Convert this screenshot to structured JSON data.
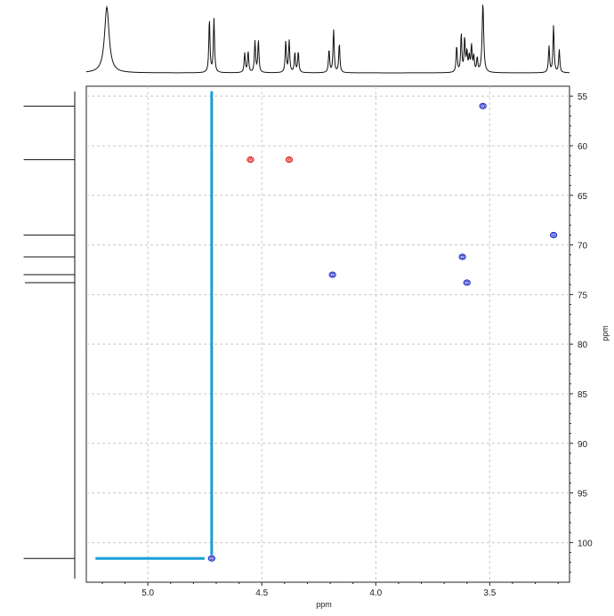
{
  "chart_data": {
    "type": "scatter",
    "title": "",
    "xlabel": "ppm",
    "ylabel": "ppm",
    "xlim": [
      5.27,
      3.15
    ],
    "ylim": [
      54.0,
      104.0
    ],
    "x_ticks": [
      {
        "value": 5.0,
        "label": "5.0"
      },
      {
        "value": 4.5,
        "label": "4.5"
      },
      {
        "value": 4.0,
        "label": "4.0"
      },
      {
        "value": 3.5,
        "label": "3.5"
      }
    ],
    "y_ticks": [
      {
        "value": 55,
        "label": "55"
      },
      {
        "value": 60,
        "label": "60"
      },
      {
        "value": 65,
        "label": "65"
      },
      {
        "value": 70,
        "label": "70"
      },
      {
        "value": 75,
        "label": "75"
      },
      {
        "value": 80,
        "label": "80"
      },
      {
        "value": 85,
        "label": "85"
      },
      {
        "value": 90,
        "label": "90"
      },
      {
        "value": 95,
        "label": "95"
      },
      {
        "value": 100,
        "label": "100"
      }
    ],
    "grid": true,
    "series": [
      {
        "color": "#1f2fbf",
        "points": [
          {
            "x": 3.53,
            "y": 56.0
          },
          {
            "x": 3.22,
            "y": 69.0
          },
          {
            "x": 3.62,
            "y": 71.2
          },
          {
            "x": 4.19,
            "y": 73.0
          },
          {
            "x": 3.6,
            "y": 73.8
          },
          {
            "x": 4.72,
            "y": 101.6
          }
        ]
      },
      {
        "color": "#e02424",
        "points": [
          {
            "x": 4.55,
            "y": 61.4
          },
          {
            "x": 4.38,
            "y": 61.4
          }
        ]
      }
    ],
    "highlight": {
      "color": "#1a9fd6",
      "x": 4.72,
      "y": 101.6,
      "x_from": 5.23,
      "y_from": 54.5
    },
    "top_projection": {
      "axis": "x_ppm",
      "peaks": [
        {
          "x": 5.18,
          "height": 0.95,
          "width": 0.012
        },
        {
          "x": 4.73,
          "height": 0.77,
          "width": 0.003
        },
        {
          "x": 4.71,
          "height": 0.78,
          "width": 0.003
        },
        {
          "x": 4.575,
          "height": 0.28,
          "width": 0.003
        },
        {
          "x": 4.56,
          "height": 0.3,
          "width": 0.003
        },
        {
          "x": 4.53,
          "height": 0.45,
          "width": 0.003
        },
        {
          "x": 4.515,
          "height": 0.46,
          "width": 0.003
        },
        {
          "x": 4.395,
          "height": 0.45,
          "width": 0.003
        },
        {
          "x": 4.38,
          "height": 0.46,
          "width": 0.003
        },
        {
          "x": 4.355,
          "height": 0.28,
          "width": 0.003
        },
        {
          "x": 4.34,
          "height": 0.3,
          "width": 0.003
        },
        {
          "x": 4.205,
          "height": 0.33,
          "width": 0.003
        },
        {
          "x": 4.185,
          "height": 0.62,
          "width": 0.003
        },
        {
          "x": 4.16,
          "height": 0.42,
          "width": 0.003
        },
        {
          "x": 3.645,
          "height": 0.38,
          "width": 0.003
        },
        {
          "x": 3.625,
          "height": 0.55,
          "width": 0.003
        },
        {
          "x": 3.61,
          "height": 0.48,
          "width": 0.003
        },
        {
          "x": 3.6,
          "height": 0.28,
          "width": 0.003
        },
        {
          "x": 3.59,
          "height": 0.22,
          "width": 0.003
        },
        {
          "x": 3.58,
          "height": 0.38,
          "width": 0.003
        },
        {
          "x": 3.57,
          "height": 0.22,
          "width": 0.003
        },
        {
          "x": 3.555,
          "height": 0.2,
          "width": 0.003
        },
        {
          "x": 3.53,
          "height": 1.0,
          "width": 0.004
        },
        {
          "x": 3.24,
          "height": 0.38,
          "width": 0.003
        },
        {
          "x": 3.22,
          "height": 0.68,
          "width": 0.003
        },
        {
          "x": 3.195,
          "height": 0.33,
          "width": 0.003
        }
      ]
    },
    "left_projection": {
      "axis": "y_ppm",
      "peaks": [
        {
          "y": 56.0,
          "height": 0.82
        },
        {
          "y": 61.4,
          "height": 0.82
        },
        {
          "y": 69.0,
          "height": 0.82
        },
        {
          "y": 71.2,
          "height": 0.82
        },
        {
          "y": 73.0,
          "height": 0.82
        },
        {
          "y": 73.8,
          "height": 0.8
        },
        {
          "y": 101.6,
          "height": 0.82
        }
      ]
    }
  }
}
